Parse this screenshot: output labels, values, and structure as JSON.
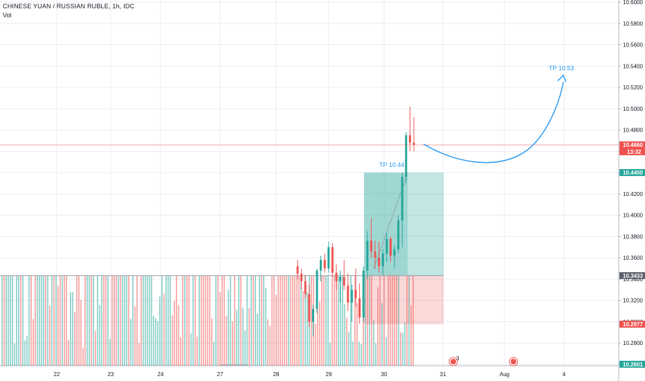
{
  "header": {
    "symbol_title": "CHINESE YUAN / RUSSIAN RUBLE, 1h, IDC",
    "volume_label": "Vol"
  },
  "colors": {
    "up": "#26a69a",
    "down": "#ef5350",
    "grid": "#e9ecf2",
    "annotation": "#2196f3",
    "profit_zone": "#26a69a",
    "loss_zone": "#ef5350"
  },
  "price_axis": {
    "ticks": [
      "10.6000",
      "10.5800",
      "10.5600",
      "10.5400",
      "10.5200",
      "10.5000",
      "10.4800",
      "10.4600",
      "10.4400",
      "10.4200",
      "10.4000",
      "10.3800",
      "10.3600",
      "10.3400",
      "10.3200",
      "10.3000",
      "10.2800",
      "10.2600"
    ],
    "tags": [
      {
        "label": "10.4660",
        "sub": "13:32",
        "value": 10.466,
        "color": "#ef5350"
      },
      {
        "label": "10.4400",
        "value": 10.44,
        "color": "#26a69a"
      },
      {
        "label": "10.3433",
        "value": 10.3433,
        "color": "#5d606b"
      },
      {
        "label": "10.2977",
        "value": 10.2977,
        "color": "#ef5350"
      },
      {
        "label": "10.2601",
        "value": 10.2601,
        "color": "#26a69a"
      }
    ]
  },
  "time_axis": {
    "labels": [
      "22",
      "23",
      "24",
      "27",
      "28",
      "29",
      "30",
      "31",
      "Aug",
      "4"
    ]
  },
  "annotations": {
    "tp_entry": "TP 10.44",
    "tp_target": "TP 10.53",
    "event_count": "3"
  },
  "chart_data": {
    "type": "candlestick",
    "title": "CHINESE YUAN / RUSSIAN RUBLE, 1h, IDC",
    "ylim": [
      10.255,
      10.6
    ],
    "current_price": 10.466,
    "long_position": {
      "entry": 10.3433,
      "take_profit": 10.44,
      "stop_loss": 10.2977
    },
    "projected_target": 10.53,
    "candles": [
      [
        10.352,
        10.358,
        10.34,
        10.345
      ],
      [
        10.345,
        10.35,
        10.33,
        10.338
      ],
      [
        10.338,
        10.344,
        10.322,
        10.326
      ],
      [
        10.326,
        10.335,
        10.295,
        10.3
      ],
      [
        10.3,
        10.316,
        10.286,
        10.312
      ],
      [
        10.312,
        10.35,
        10.308,
        10.348
      ],
      [
        10.348,
        10.362,
        10.338,
        10.358
      ],
      [
        10.358,
        10.364,
        10.346,
        10.35
      ],
      [
        10.35,
        10.375,
        10.346,
        10.37
      ],
      [
        10.37,
        10.374,
        10.342,
        10.346
      ],
      [
        10.346,
        10.354,
        10.33,
        10.338
      ],
      [
        10.338,
        10.348,
        10.318,
        10.342
      ],
      [
        10.342,
        10.358,
        10.33,
        10.334
      ],
      [
        10.334,
        10.345,
        10.31,
        10.318
      ],
      [
        10.318,
        10.335,
        10.3,
        10.33
      ],
      [
        10.33,
        10.35,
        10.314,
        10.322
      ],
      [
        10.322,
        10.336,
        10.298,
        10.304
      ],
      [
        10.304,
        10.352,
        10.3,
        10.348
      ],
      [
        10.348,
        10.385,
        10.34,
        10.376
      ],
      [
        10.376,
        10.397,
        10.36,
        10.366
      ],
      [
        10.366,
        10.376,
        10.35,
        10.36
      ],
      [
        10.36,
        10.375,
        10.346,
        10.352
      ],
      [
        10.352,
        10.368,
        10.344,
        10.364
      ],
      [
        10.364,
        10.384,
        10.356,
        10.378
      ],
      [
        10.378,
        10.38,
        10.356,
        10.362
      ],
      [
        10.362,
        10.372,
        10.35,
        10.368
      ],
      [
        10.368,
        10.4,
        10.364,
        10.395
      ],
      [
        10.395,
        10.44,
        10.37,
        10.436
      ],
      [
        10.436,
        10.478,
        10.43,
        10.475
      ],
      [
        10.475,
        10.502,
        10.46,
        10.468
      ],
      [
        10.468,
        10.492,
        10.46,
        10.466
      ]
    ]
  }
}
